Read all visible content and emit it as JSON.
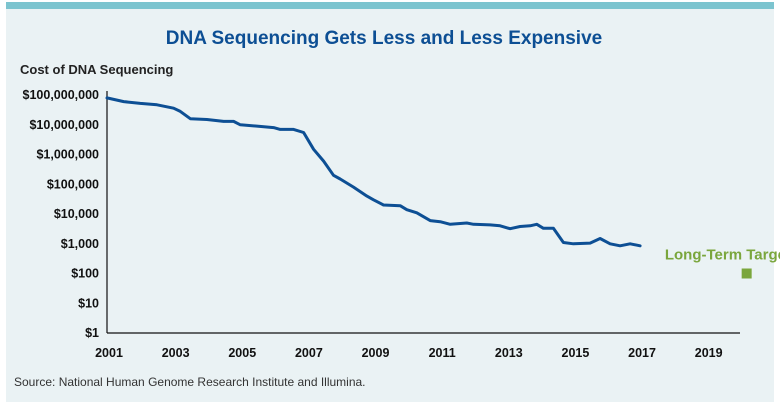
{
  "chart_data": {
    "type": "line",
    "title": "DNA Sequencing Gets Less and Less Expensive",
    "ylabel": "Cost of DNA Sequencing",
    "xlabel": "",
    "source": "Source: National Human Genome Research Institute and Illumina.",
    "y_scale": "log",
    "ylim": [
      1,
      100000000
    ],
    "xlim": [
      2001,
      2020
    ],
    "x_ticks": [
      "2001",
      "2003",
      "2005",
      "2007",
      "2009",
      "2011",
      "2013",
      "2015",
      "2017",
      "2019"
    ],
    "y_ticks": [
      "$1",
      "$10",
      "$100",
      "$1,000",
      "$10,000",
      "$100,000",
      "$1,000,000",
      "$10,000,000",
      "$100,000,000"
    ],
    "series": [
      {
        "color": "#0d4f94",
        "points": [
          [
            2001.0,
            80000000
          ],
          [
            2001.5,
            60000000
          ],
          [
            2002.0,
            52000000
          ],
          [
            2002.5,
            47000000
          ],
          [
            2003.0,
            36000000
          ],
          [
            2003.2,
            28000000
          ],
          [
            2003.5,
            16000000
          ],
          [
            2004.0,
            15000000
          ],
          [
            2004.5,
            13000000
          ],
          [
            2004.8,
            13000000
          ],
          [
            2005.0,
            10000000
          ],
          [
            2005.5,
            9000000
          ],
          [
            2006.0,
            8000000
          ],
          [
            2006.2,
            7000000
          ],
          [
            2006.6,
            7000000
          ],
          [
            2006.9,
            5500000
          ],
          [
            2007.2,
            1500000
          ],
          [
            2007.5,
            600000
          ],
          [
            2007.8,
            200000
          ],
          [
            2008.0,
            150000
          ],
          [
            2008.4,
            80000
          ],
          [
            2008.8,
            40000
          ],
          [
            2009.0,
            30000
          ],
          [
            2009.3,
            20000
          ],
          [
            2009.8,
            19000
          ],
          [
            2010.0,
            14000
          ],
          [
            2010.3,
            11000
          ],
          [
            2010.7,
            6000
          ],
          [
            2011.0,
            5500
          ],
          [
            2011.3,
            4500
          ],
          [
            2011.8,
            5000
          ],
          [
            2012.0,
            4500
          ],
          [
            2012.5,
            4300
          ],
          [
            2012.8,
            4000
          ],
          [
            2013.1,
            3200
          ],
          [
            2013.4,
            3800
          ],
          [
            2013.7,
            4000
          ],
          [
            2013.9,
            4500
          ],
          [
            2014.1,
            3300
          ],
          [
            2014.4,
            3300
          ],
          [
            2014.7,
            1100
          ],
          [
            2015.0,
            1000
          ],
          [
            2015.5,
            1050
          ],
          [
            2015.8,
            1500
          ],
          [
            2016.1,
            1000
          ],
          [
            2016.4,
            850
          ],
          [
            2016.7,
            1000
          ],
          [
            2017.0,
            850
          ]
        ]
      }
    ],
    "annotation": {
      "label": "Long-Term Target Cost",
      "x": 2020.2,
      "y": 100,
      "color": "#7aa63c"
    }
  }
}
